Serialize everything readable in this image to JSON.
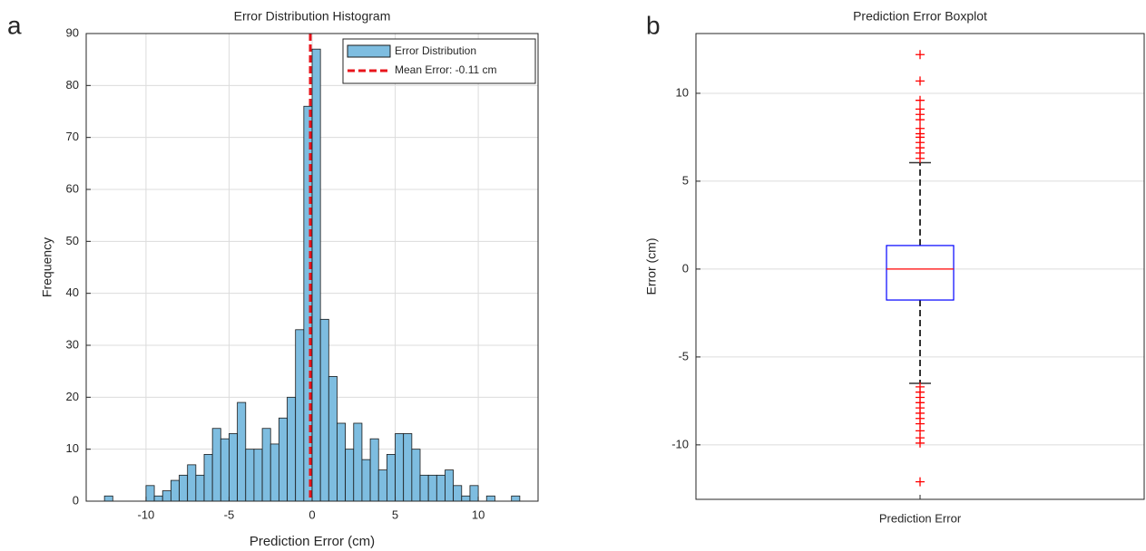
{
  "chart_data": [
    {
      "type": "histogram",
      "panel_label": "a",
      "title": "Error Distribution Histogram",
      "xlabel": "Prediction Error (cm)",
      "ylabel": "Frequency",
      "name": "Error Distribution",
      "color": "#7ebde0",
      "edgecolor": "#1a1a1a",
      "bins": [
        -12.5,
        -12,
        -11.5,
        -11,
        -10.5,
        -10,
        -9.5,
        -9,
        -8.5,
        -8,
        -7.5,
        -7,
        -6.5,
        -6,
        -5.5,
        -5,
        -4.5,
        -4,
        -3.5,
        -3,
        -2.5,
        -2,
        -1.5,
        -1,
        -0.5,
        0,
        0.5,
        1,
        1.5,
        2,
        2.5,
        3,
        3.5,
        4,
        4.5,
        5,
        5.5,
        6,
        6.5,
        7,
        7.5,
        8,
        8.5,
        9,
        9.5,
        10,
        10.5,
        11,
        11.5,
        12,
        12.5
      ],
      "counts": [
        1,
        0,
        0,
        0,
        0,
        3,
        1,
        2,
        4,
        5,
        7,
        5,
        9,
        14,
        12,
        13,
        19,
        10,
        10,
        14,
        11,
        16,
        20,
        33,
        76,
        87,
        35,
        24,
        15,
        10,
        15,
        8,
        12,
        6,
        9,
        13,
        13,
        10,
        5,
        5,
        5,
        6,
        3,
        1,
        3,
        0,
        1,
        0,
        0,
        1
      ],
      "mean_line": {
        "name": "Mean Error: -0.11 cm",
        "value": -0.11,
        "color": "#e8141c"
      },
      "xlim": [
        -13.6,
        13.6
      ],
      "xticks": [
        -10,
        -5,
        0,
        5,
        10
      ],
      "ylim": [
        0,
        90
      ],
      "yticks": [
        0,
        10,
        20,
        30,
        40,
        50,
        60,
        70,
        80,
        90
      ],
      "grid": true,
      "legend": "upper right"
    },
    {
      "type": "box",
      "panel_label": "b",
      "title": "Prediction Error Boxplot",
      "ylabel": "Error (cm)",
      "categories": [
        "Prediction Error"
      ],
      "q1": -1.76,
      "median": 0,
      "q3": 1.34,
      "whisker_low": -6.5,
      "whisker_high": 6.05,
      "outliers": [
        12.2,
        10.7,
        9.6,
        9.1,
        8.8,
        8.5,
        8.0,
        7.7,
        7.5,
        7.2,
        6.9,
        6.6,
        6.3,
        -6.7,
        -7.0,
        -7.3,
        -7.6,
        -7.9,
        -8.2,
        -8.5,
        -8.8,
        -9.2,
        -9.6,
        -9.9,
        -12.1
      ],
      "box_color": "#0000ff",
      "median_color": "#ff0000",
      "whisker_color": "#333333",
      "outlier_color": "#ff0000",
      "ylim": [
        -13.1,
        13.4
      ],
      "yticks": [
        -10,
        -5,
        0,
        5,
        10
      ],
      "grid": true
    }
  ]
}
